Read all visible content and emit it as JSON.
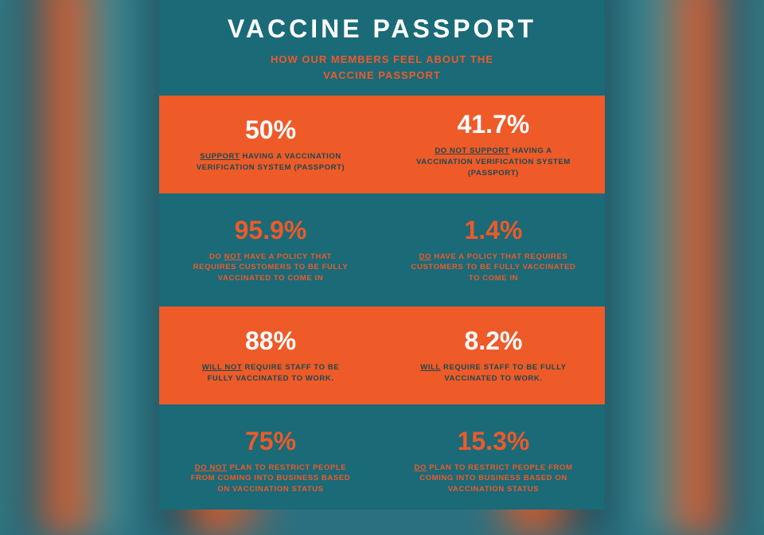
{
  "colors": {
    "teal": "#1a6a78",
    "orange": "#ee5a28",
    "white": "#ffffff",
    "darkText": "#1a4a52"
  },
  "header": {
    "title": "VACCINE PASSPORT",
    "subtitle_l1": "HOW OUR MEMBERS FEEL ABOUT THE",
    "subtitle_l2": "VACCINE PASSPORT"
  },
  "rows": [
    {
      "bg": "orange",
      "left": {
        "pct": "50%",
        "em": "SUPPORT",
        "rest": " HAVING A VACCINATION VERIFICATION SYSTEM (PASSPORT)"
      },
      "right": {
        "pct": "41.7%",
        "em": "DO NOT SUPPORT",
        "rest": " HAVING A VACCINATION VERIFICATION SYSTEM (PASSPORT)"
      }
    },
    {
      "bg": "teal",
      "left": {
        "pct": "95.9%",
        "pre": "DO ",
        "em": "NOT",
        "rest": " HAVE A POLICY THAT REQUIRES CUSTOMERS TO BE FULLY VACCINATED TO COME IN"
      },
      "right": {
        "pct": "1.4%",
        "em": "DO",
        "rest": " HAVE A POLICY THAT REQUIRES CUSTOMERS TO BE FULLY VACCINATED TO COME IN"
      }
    },
    {
      "bg": "orange",
      "left": {
        "pct": "88%",
        "em": "WILL NOT",
        "rest": " REQUIRE STAFF TO BE FULLY VACCINATED TO WORK."
      },
      "right": {
        "pct": "8.2%",
        "em": "WILL",
        "rest": " REQUIRE STAFF TO BE FULLY VACCINATED TO WORK."
      }
    },
    {
      "bg": "teal",
      "left": {
        "pct": "75%",
        "em": "DO NOT",
        "rest": " PLAN TO RESTRICT PEOPLE FROM COMING INTO BUSINESS BASED ON VACCINATION STATUS"
      },
      "right": {
        "pct": "15.3%",
        "em": "DO",
        "rest": " PLAN TO RESTRICT PEOPLE FROM COMING INTO BUSINESS BASED ON VACCINATION STATUS"
      }
    }
  ]
}
